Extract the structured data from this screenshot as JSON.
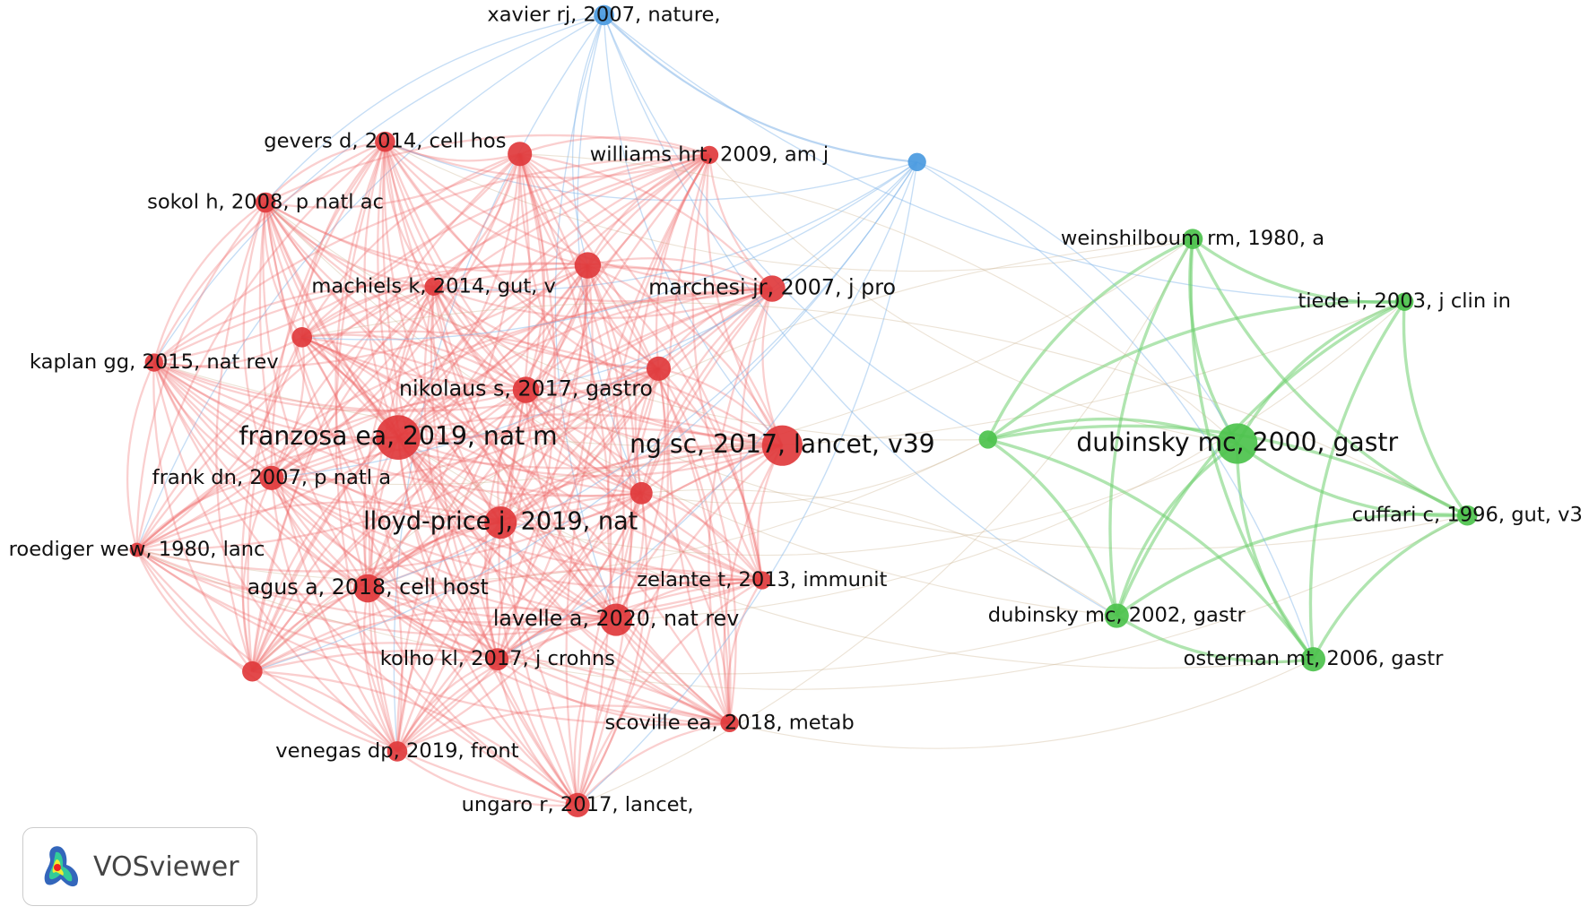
{
  "nodes": [
    {
      "label": "xavier rj, 2007, nature,"
    },
    {
      "label": "gevers d, 2014, cell hos"
    },
    {
      "label": "williams hrt, 2009, am j"
    },
    {
      "label": "sokol h, 2008, p natl ac"
    },
    {
      "label": "machiels k, 2014, gut, v"
    },
    {
      "label": "marchesi jr, 2007, j pro"
    },
    {
      "label": "kaplan gg, 2015, nat rev"
    },
    {
      "label": "nikolaus s, 2017, gastro"
    },
    {
      "label": "franzosa ea, 2019, nat m"
    },
    {
      "label": "ng sc, 2017, lancet, v39"
    },
    {
      "label": "frank dn, 2007, p natl a"
    },
    {
      "label": "lloyd-price j, 2019, nat"
    },
    {
      "label": "roediger wew, 1980, lanc"
    },
    {
      "label": "agus a, 2018, cell host"
    },
    {
      "label": "zelante t, 2013, immunit"
    },
    {
      "label": "lavelle a, 2020, nat rev"
    },
    {
      "label": "kolho kl, 2017, j crohns"
    },
    {
      "label": "scoville ea, 2018, metab"
    },
    {
      "label": "venegas dp, 2019, front"
    },
    {
      "label": "ungaro r, 2017, lancet,"
    },
    {
      "label": "weinshilboum rm, 1980, a"
    },
    {
      "label": "tiede i, 2003, j clin in"
    },
    {
      "label": "dubinsky mc, 2000, gastr"
    },
    {
      "label": "cuffari c, 1996, gut, v3"
    },
    {
      "label": "dubinsky mc, 2002, gastr"
    },
    {
      "label": "osterman mt, 2006, gastr"
    }
  ],
  "logo": {
    "text": "VOSviewer"
  }
}
